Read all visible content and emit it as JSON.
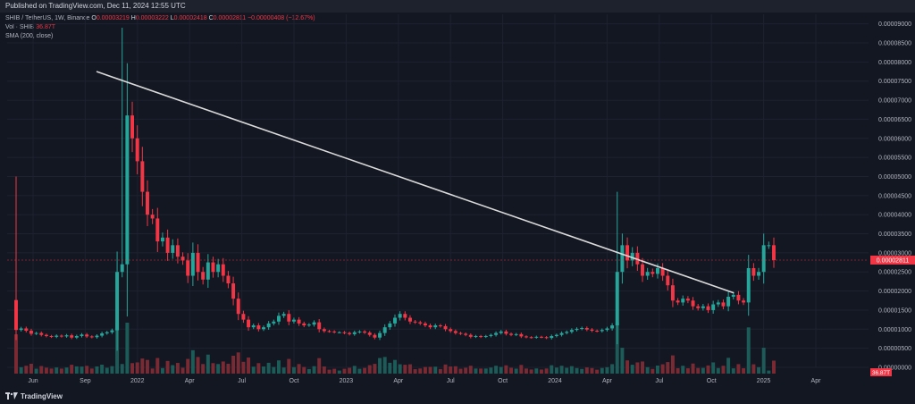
{
  "header": {
    "published": "Published on TradingView.com, Dec 11, 2024 12:55 UTC"
  },
  "legend": {
    "symbol": "SHIB / TetherUS, 1W, Binance",
    "ohlc": [
      {
        "k": "O",
        "v": "0.00003219"
      },
      {
        "k": "H",
        "v": "0.00003222"
      },
      {
        "k": "L",
        "v": "0.00002418"
      },
      {
        "k": "C",
        "v": "0.00002811"
      }
    ],
    "change": "−0.00000408 (−12.67%)",
    "vol_label": "Vol · SHIB",
    "vol_value": "36.87T",
    "sma_label": "SMA (200, close)"
  },
  "footer": {
    "brand": "TradingView"
  },
  "colors": {
    "background": "#131722",
    "grid": "#1e2230",
    "up": "#26a69a",
    "down": "#f23645",
    "up_volume": "#1c5b57",
    "down_volume": "#7a2a33",
    "trendline": "#d9d9d9",
    "text": "#b2b5be"
  },
  "chart_data": {
    "type": "candlestick",
    "symbol": "SHIB / TetherUS",
    "interval": "1W",
    "exchange": "Binance",
    "x_axis_labels": [
      "Jun",
      "Sep",
      "2022",
      "Apr",
      "Jul",
      "Oct",
      "2023",
      "Apr",
      "Jul",
      "Oct",
      "2024",
      "Apr",
      "Jul",
      "Oct",
      "2025",
      "Apr"
    ],
    "y_axis_labels": [
      "0.00009000",
      "0.00008500",
      "0.00008000",
      "0.00007500",
      "0.00007000",
      "0.00006500",
      "0.00006000",
      "0.00005500",
      "0.00005000",
      "0.00004500",
      "0.00004000",
      "0.00003500",
      "0.00003000",
      "0.00002500",
      "0.00002000",
      "0.00001500",
      "0.00001000",
      "0.00000500",
      "0.00000000"
    ],
    "ylim": [
      0,
      9.25e-05
    ],
    "last_price_label": "0.00002811",
    "last_price": 2.811e-05,
    "volume_label": "36.87T",
    "trendline": {
      "from": [
        0.0,
        7.75e-05
      ],
      "to": [
        0.74,
        1.95e-05
      ]
    },
    "series": [
      {
        "name": "SHIB / TetherUS",
        "close": [
          9.8e-06,
          1.02e-05,
          9.6e-06,
          8.8e-06,
          9e-06,
          8.5e-06,
          8.2e-06,
          8e-06,
          8.3e-06,
          8.1e-06,
          8.4e-06,
          7.8e-06,
          8.2e-06,
          8.6e-06,
          8.1e-06,
          7.9e-06,
          8.3e-06,
          8.9e-06,
          9.2e-06,
          9.7e-06,
          2.5e-05,
          2.7e-05,
          6.6e-05,
          6e-05,
          5.4e-05,
          4.6e-05,
          4e-05,
          3.9e-05,
          3.3e-05,
          3.4e-05,
          3e-05,
          3.2e-05,
          2.9e-05,
          2.8e-05,
          2.4e-05,
          3e-05,
          2.5e-05,
          2.3e-05,
          2.75e-05,
          2.5e-05,
          2.7e-05,
          2.4e-05,
          2.2e-05,
          1.8e-05,
          1.4e-05,
          1.25e-05,
          1.05e-05,
          1.1e-05,
          1e-05,
          1.05e-05,
          1.15e-05,
          1.2e-05,
          1.35e-05,
          1.4e-05,
          1.2e-05,
          1.25e-05,
          1.15e-05,
          1.1e-05,
          1.12e-05,
          1.18e-05,
          1e-05,
          9.5e-06,
          9.4e-06,
          9.2e-06,
          9.2e-06,
          9e-06,
          8.7e-06,
          9.2e-06,
          9.4e-06,
          9.1e-06,
          8.5e-06,
          7.8e-06,
          9e-06,
          1.05e-05,
          1.15e-05,
          1.3e-05,
          1.4e-05,
          1.3e-05,
          1.2e-05,
          1.18e-05,
          1.15e-05,
          1.1e-05,
          1.05e-05,
          1.1e-05,
          1.08e-05,
          1e-05,
          9.5e-06,
          9e-06,
          8.8e-06,
          8.5e-06,
          8e-06,
          8.2e-06,
          8e-06,
          8.2e-06,
          8.5e-06,
          9e-06,
          9.4e-06,
          8.8e-06,
          8.5e-06,
          8.7e-06,
          8.1e-06,
          7.9e-06,
          7.8e-06,
          8e-06,
          7.9e-06,
          7.7e-06,
          8.2e-06,
          8.5e-06,
          9e-06,
          9.3e-06,
          9.8e-06,
          1.01e-05,
          1.03e-05,
          9.9e-06,
          9.6e-06,
          9.5e-06,
          9.8e-06,
          1.02e-05,
          1.1e-05,
          2.5e-05,
          3.2e-05,
          2.8e-05,
          3e-05,
          2.7e-05,
          2.4e-05,
          2.5e-05,
          2.45e-05,
          2.6e-05,
          2.4e-05,
          2.15e-05,
          1.75e-05,
          1.7e-05,
          1.8e-05,
          1.75e-05,
          1.6e-05,
          1.55e-05,
          1.6e-05,
          1.5e-05,
          1.65e-05,
          1.7e-05,
          1.6e-05,
          1.85e-05,
          1.9e-05,
          1.75e-05,
          1.7e-05,
          2.6e-05,
          2.4e-05,
          2.5e-05,
          3.2e-05,
          3.2e-05,
          2.81e-05
        ]
      }
    ]
  }
}
